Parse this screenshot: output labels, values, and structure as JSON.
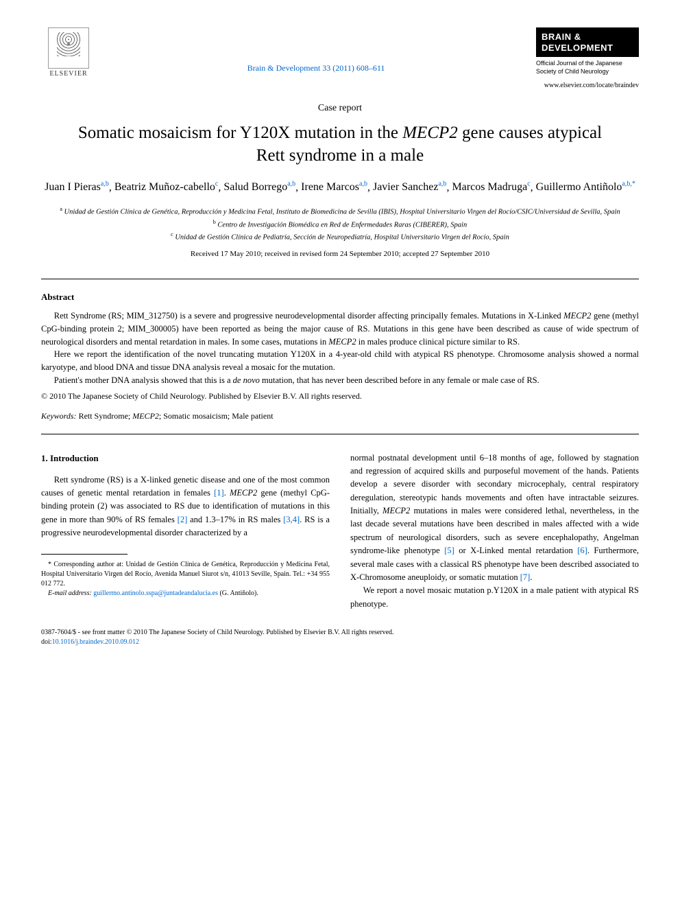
{
  "header": {
    "publisher": "ELSEVIER",
    "journal_ref_text": "Brain & Development 33 (2011) 608–611",
    "journal_badge_line1": "BRAIN &",
    "journal_badge_line2": "DEVELOPMENT",
    "journal_subtitle": "Official Journal of the Japanese Society of Child Neurology",
    "journal_url": "www.elsevier.com/locate/braindev"
  },
  "article": {
    "type": "Case report",
    "title_pre": "Somatic mosaicism for Y120X mutation in the ",
    "title_gene": "MECP2",
    "title_post": " gene causes atypical Rett syndrome in a male",
    "authors": [
      {
        "name": "Juan I Pieras",
        "aff": "a,b"
      },
      {
        "name": "Beatriz Muñoz-cabello",
        "aff": "c"
      },
      {
        "name": "Salud Borrego",
        "aff": "a,b"
      },
      {
        "name": "Irene Marcos",
        "aff": "a,b"
      },
      {
        "name": "Javier Sanchez",
        "aff": "a,b"
      },
      {
        "name": "Marcos Madruga",
        "aff": "c"
      },
      {
        "name": "Guillermo Antiñolo",
        "aff": "a,b,*"
      }
    ],
    "affiliations": {
      "a": "Unidad de Gestión Clínica de Genética, Reproducción y Medicina Fetal, Instituto de Biomedicina de Sevilla (IBIS), Hospital Universitario Virgen del Rocío/CSIC/Universidad de Sevilla, Spain",
      "b": "Centro de Investigación Biomédica en Red de Enfermedades Raras (CIBERER), Spain",
      "c": "Unidad de Gestión Clínica de Pediatría, Sección de Neuropediatría, Hospital Universitario Virgen del Rocío, Spain"
    },
    "dates": "Received 17 May 2010; received in revised form 24 September 2010; accepted 27 September 2010"
  },
  "abstract": {
    "heading": "Abstract",
    "p1_a": "Rett Syndrome (RS; MIM_312750) is a severe and progressive neurodevelopmental disorder affecting principally females. Mutations in X-Linked ",
    "p1_gene1": "MECP2",
    "p1_b": " gene (methyl CpG-binding protein 2; MIM_300005) have been reported as being the major cause of RS. Mutations in this gene have been described as cause of wide spectrum of neurological disorders and mental retardation in males. In some cases, mutations in ",
    "p1_gene2": "MECP2",
    "p1_c": " in males produce clinical picture similar to RS.",
    "p2": "Here we report the identification of the novel truncating mutation Y120X in a 4-year-old child with atypical RS phenotype. Chromosome analysis showed a normal karyotype, and blood DNA and tissue DNA analysis reveal a mosaic for the mutation.",
    "p3_a": "Patient's mother DNA analysis showed that this is a ",
    "p3_ital": "de novo",
    "p3_b": " mutation, that has never been described before in any female or male case of RS.",
    "copyright": "© 2010 The Japanese Society of Child Neurology. Published by Elsevier B.V. All rights reserved."
  },
  "keywords": {
    "label": "Keywords:",
    "text_a": " Rett Syndrome; ",
    "gene": "MECP2",
    "text_b": "; Somatic mosaicism; Male patient"
  },
  "body": {
    "section_heading": "1. Introduction",
    "col1_p1_a": "Rett syndrome (RS) is a X-linked genetic disease and one of the most common causes of genetic mental retardation in females ",
    "ref1": "[1]",
    "col1_p1_b": ". ",
    "gene1": "MECP2",
    "col1_p1_c": " gene (methyl CpG-binding protein (2) was associated to RS due to identification of mutations in this gene in more than 90% of RS females ",
    "ref2": "[2]",
    "col1_p1_d": " and 1.3–17% in RS males ",
    "ref34": "[3,4]",
    "col1_p1_e": ". RS is a progressive neurodevelopmental disorder characterized by a",
    "col2_p1_a": "normal postnatal development until 6–18 months of age, followed by stagnation and regression of acquired skills and purposeful movement of the hands. Patients develop a severe disorder with secondary microcephaly, central respiratory deregulation, stereotypic hands movements and often have intractable seizures. Initially, ",
    "gene2": "MECP2",
    "col2_p1_b": " mutations in males were considered lethal, nevertheless, in the last decade several mutations have been described in males affected with a wide spectrum of neurological disorders, such as severe encephalopathy, Angelman syndrome-like phenotype ",
    "ref5": "[5]",
    "col2_p1_c": " or X-Linked mental retardation ",
    "ref6": "[6]",
    "col2_p1_d": ". Furthermore, several male cases with a classical RS phenotype have been described associated to X-Chromosome aneuploidy, or somatic mutation ",
    "ref7": "[7]",
    "col2_p1_e": ".",
    "col2_p2": "We report a novel mosaic mutation p.Y120X in a male patient with atypical RS phenotype."
  },
  "footnote": {
    "corr_label": "* Corresponding author at: ",
    "corr_text": "Unidad de Gestión Clínica de Genética, Reproducción y Medicina Fetal, Hospital Universitario Virgen del Rocío, Avenida Manuel Siurot s/n, 41013 Seville, Spain. Tel.: +34 955 012 772.",
    "email_label": "E-mail address:",
    "email": "guillermo.antinolo.sspa@juntadeandalucia.es",
    "email_who": " (G. Antiñolo)."
  },
  "footer": {
    "issn": "0387-7604/$ - see front matter © 2010 The Japanese Society of Child Neurology. Published by Elsevier B.V. All rights reserved.",
    "doi_label": "doi:",
    "doi": "10.1016/j.braindev.2010.09.012"
  },
  "colors": {
    "link": "#0066cc",
    "text": "#000000",
    "bg": "#ffffff"
  }
}
